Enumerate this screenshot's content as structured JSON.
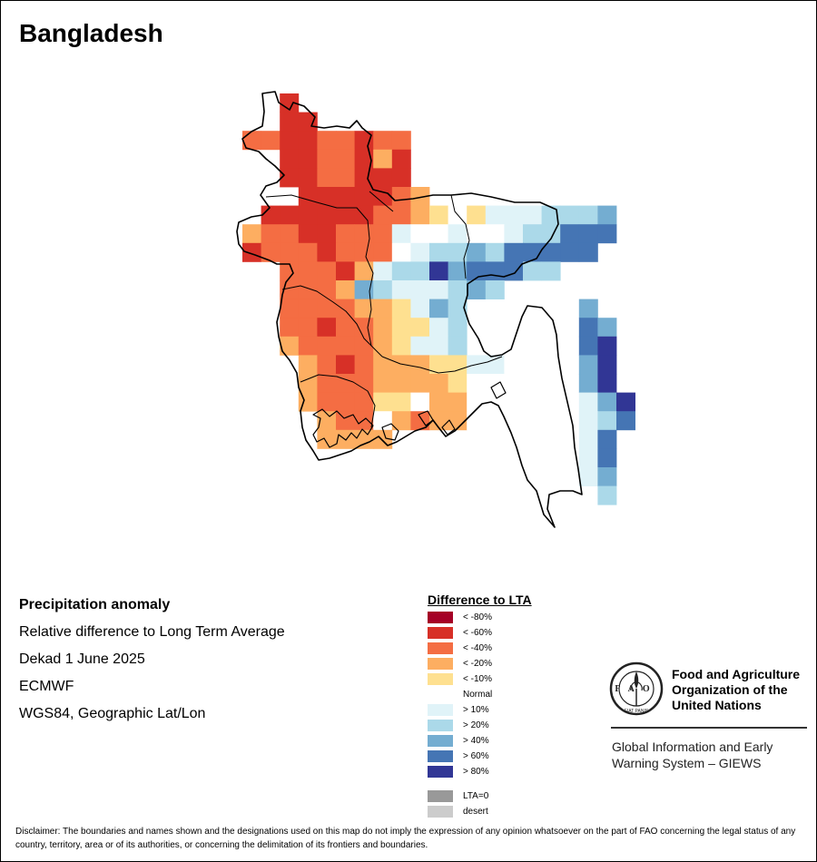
{
  "map": {
    "title": "Bangladesh",
    "colors": {
      "lt80": "#a50026",
      "lt60": "#d73027",
      "lt40": "#f46d43",
      "lt20": "#fdae61",
      "lt10": "#fee090",
      "normal": "#ffffff",
      "gt10": "#e0f3f8",
      "gt20": "#abd9e9",
      "gt40": "#74add1",
      "gt60": "#4575b4",
      "gt80": "#313695",
      "lta0": "#999999",
      "desert": "#cccccc"
    }
  },
  "info": {
    "heading": "Precipitation anomaly",
    "lines": [
      "Relative difference to Long Term Average",
      "Dekad 1 June 2025",
      "ECMWF",
      "WGS84, Geographic Lat/Lon"
    ]
  },
  "legend": {
    "title": "Difference to LTA",
    "items": [
      {
        "label": "< -80%",
        "color": "#a50026"
      },
      {
        "label": "< -60%",
        "color": "#d73027"
      },
      {
        "label": "< -40%",
        "color": "#f46d43"
      },
      {
        "label": "< -20%",
        "color": "#fdae61"
      },
      {
        "label": "< -10%",
        "color": "#fee090"
      },
      {
        "label": "Normal",
        "color": "#ffffff"
      },
      {
        "label": "> 10%",
        "color": "#e0f3f8"
      },
      {
        "label": "> 20%",
        "color": "#abd9e9"
      },
      {
        "label": "> 40%",
        "color": "#74add1"
      },
      {
        "label": "> 60%",
        "color": "#4575b4"
      },
      {
        "label": "> 80%",
        "color": "#313695"
      },
      {
        "label": "LTA=0",
        "color": "#999999"
      },
      {
        "label": "desert",
        "color": "#cccccc"
      }
    ]
  },
  "org": {
    "logo_icon": "fao-logo-icon",
    "name_lines": [
      "Food and Agriculture",
      "Organization of the",
      "United Nations"
    ],
    "logo_text": "FAO",
    "logo_motto": "FIAT PANIS",
    "giews_lines": [
      "Global Information and Early",
      "Warning System – GIEWS"
    ]
  },
  "disclaimer": "Disclaimer: The boundaries and names shown and the designations used on this map do not imply the expression of any opinion whatsoever on the part of FAO concerning the legal status of any country, territory, area or of its authorities, or concerning the delimitation of its frontiers and boundaries."
}
